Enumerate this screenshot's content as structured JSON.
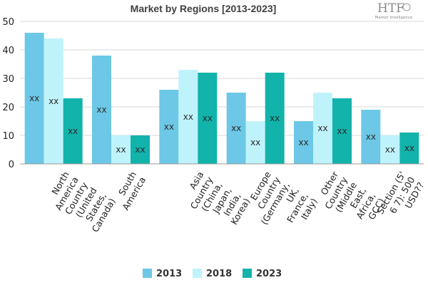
{
  "brand": {
    "logo_text": "HTF",
    "logo_sub": "Market Intelligence"
  },
  "chart_data": {
    "type": "bar",
    "title": "Market by Regions [2013-2023]",
    "xlabel": "",
    "ylabel": "",
    "ylim": [
      0,
      50
    ],
    "yticks": [
      0,
      10,
      20,
      30,
      40,
      50
    ],
    "grid": true,
    "legend": "bottom",
    "categories": [
      "North America Country (United States, Canada)",
      "South America",
      "Asia Country (China, Japan, India, Korea)",
      "Europe Country (Germany, UK, France, Italy)",
      "Other Country (Middle East, Africa, GCC)",
      "Section (5 6 7): 500 USD??"
    ],
    "category_lines": [
      [
        "North",
        "America",
        "Country",
        "(United",
        "States,",
        "Canada)"
      ],
      [
        "South",
        "America"
      ],
      [
        "Asia",
        "Country",
        "(China,",
        "Japan,",
        "India,",
        "Korea)"
      ],
      [
        "Europe",
        "Country",
        "(Germany,",
        "UK,",
        "France,",
        "Italy)"
      ],
      [
        "Other",
        "Country",
        "(Middle",
        "East,",
        "Africa,",
        "GCC)"
      ],
      [
        "Section (5'",
        "6 7): 500",
        "USD??"
      ]
    ],
    "series": [
      {
        "name": "2013",
        "color": "#6cc8e6",
        "values": [
          46,
          38,
          26,
          25,
          15,
          19
        ]
      },
      {
        "name": "2018",
        "color": "#bff3fb",
        "values": [
          44,
          10,
          33,
          15,
          25,
          10
        ]
      },
      {
        "name": "2023",
        "color": "#12b3ab",
        "values": [
          23,
          10,
          32,
          32,
          23,
          11
        ]
      }
    ],
    "data_label": "xx"
  }
}
